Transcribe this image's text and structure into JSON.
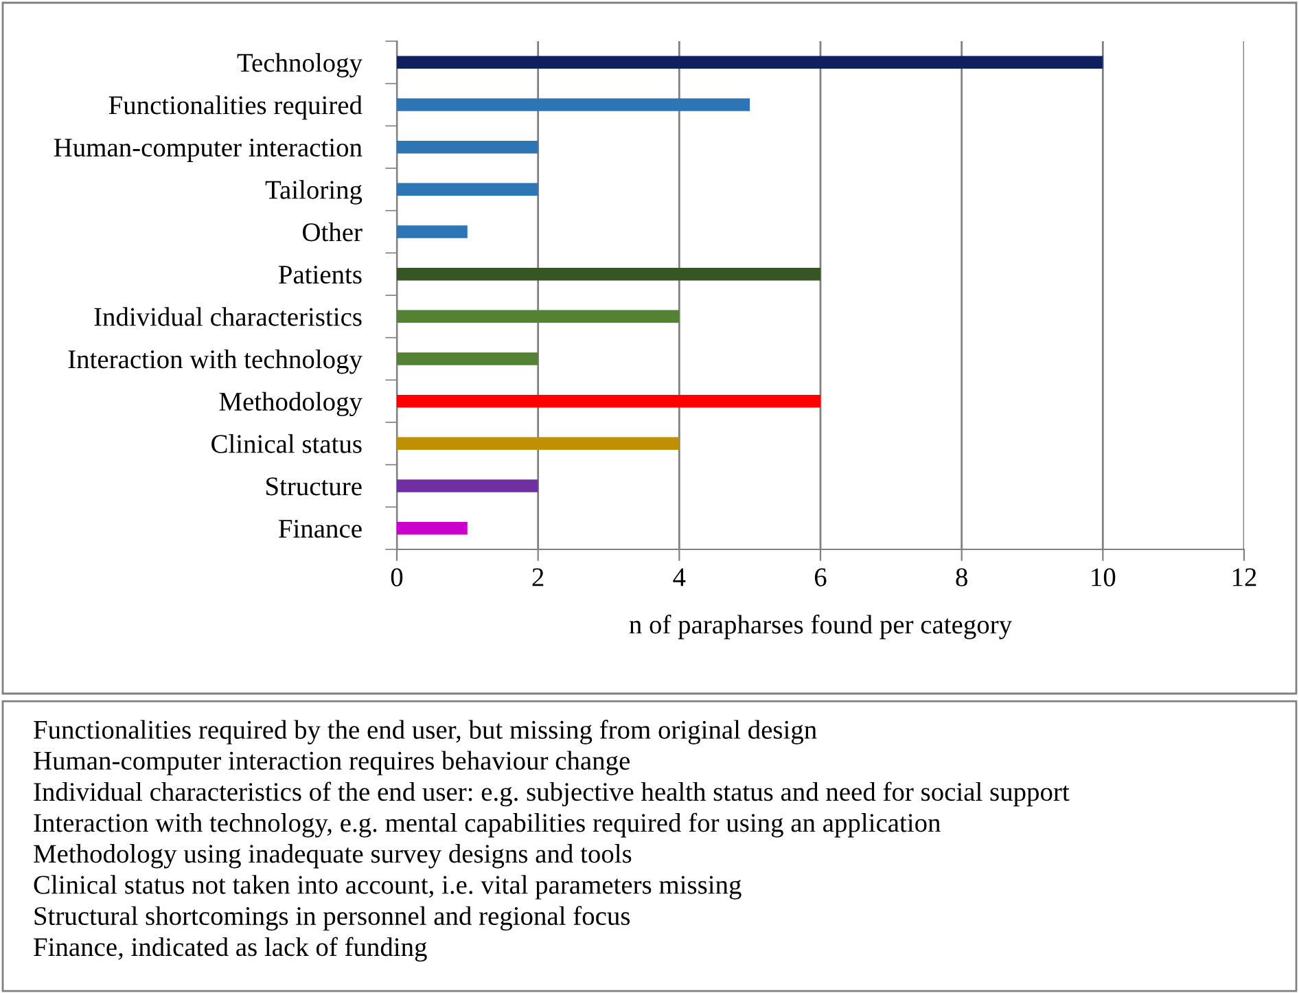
{
  "chart_data": {
    "type": "bar",
    "orientation": "horizontal",
    "categories": [
      "Technology",
      "Functionalities required",
      "Human-computer interaction",
      "Tailoring",
      "Other",
      "Patients",
      "Individual characteristics",
      "Interaction with technology",
      "Methodology",
      "Clinical status",
      "Structure",
      "Finance"
    ],
    "values": [
      10,
      5,
      2,
      2,
      1,
      6,
      4,
      2,
      6,
      4,
      2,
      1
    ],
    "colors": [
      "#0f2060",
      "#2e75b6",
      "#2e75b6",
      "#2e75b6",
      "#2e75b6",
      "#375623",
      "#548235",
      "#548235",
      "#ff0000",
      "#bf9000",
      "#7030a0",
      "#cc00cc"
    ],
    "xlim": [
      0,
      12
    ],
    "xticks": [
      0,
      2,
      4,
      6,
      8,
      10,
      12
    ],
    "xlabel": "n of parapharses found per category",
    "grid": "x",
    "legend": false,
    "annotations": [
      "Functionalities required by the end user, but missing from original design",
      "Human-computer interaction requires behaviour change",
      "Individual characteristics of the end user: e.g. subjective health status and need for social support",
      "Interaction with technology, e.g. mental capabilities required for using an application",
      "Methodology using inadequate survey designs and tools",
      "Clinical status not taken into account, i.e. vital parameters missing",
      "Structural shortcomings in personnel and regional focus",
      "Finance, indicated as lack of funding"
    ]
  }
}
